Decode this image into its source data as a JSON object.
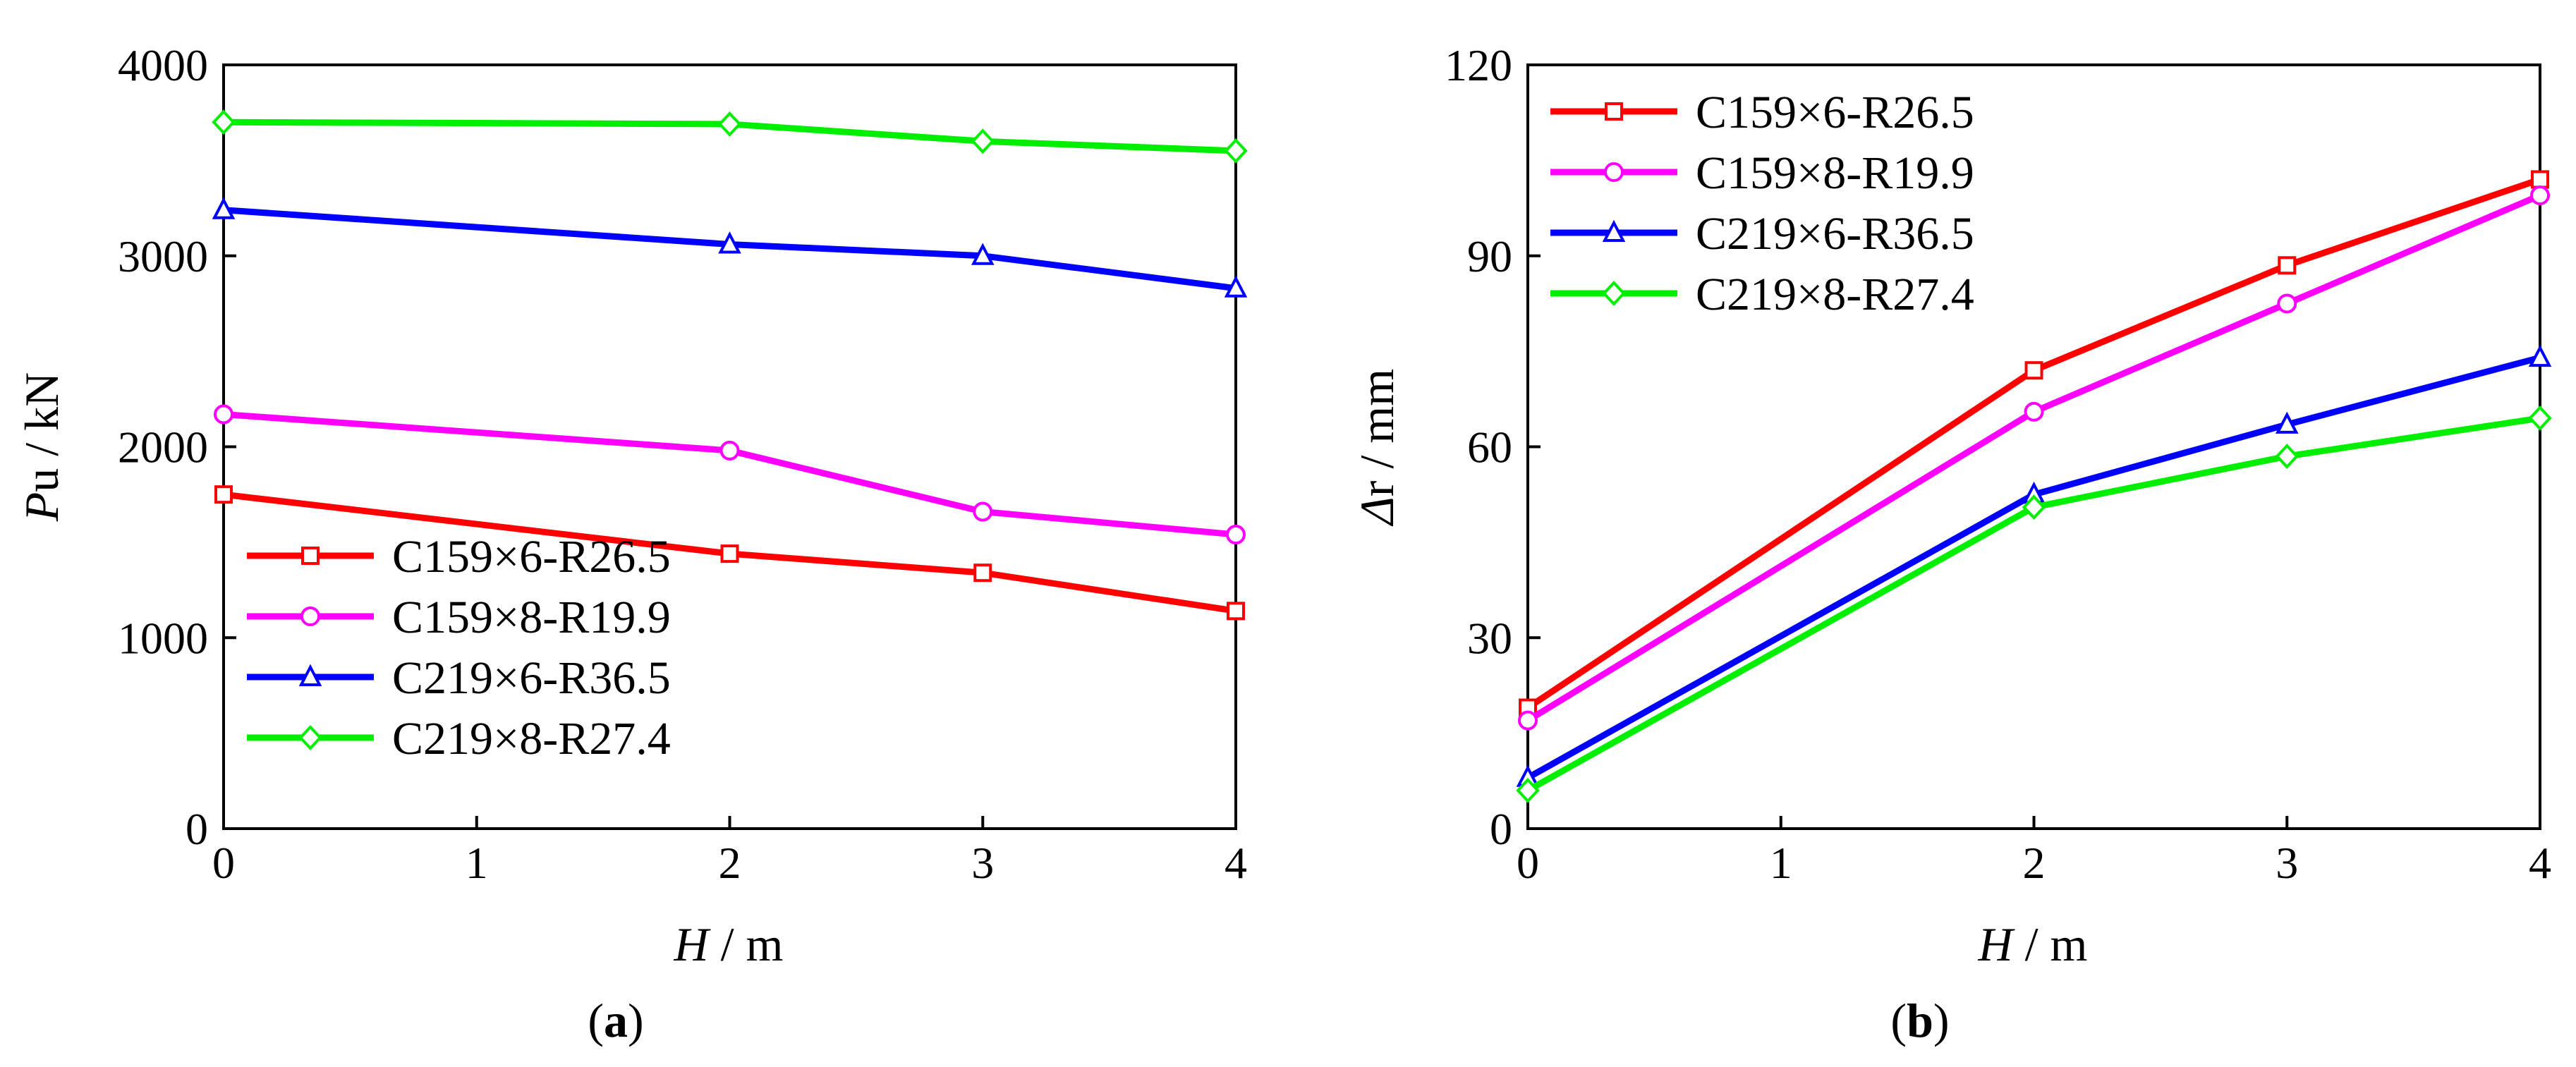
{
  "chart_data": [
    {
      "type": "line",
      "caption_open": "(",
      "caption_letter": "a",
      "caption_close": ")",
      "x": [
        0,
        2,
        3,
        4
      ],
      "xlim": [
        0,
        4
      ],
      "ylim": [
        0,
        4000
      ],
      "xticks": [
        "0",
        "1",
        "2",
        "3",
        "4"
      ],
      "yticks": [
        "0",
        "1000",
        "2000",
        "3000",
        "4000"
      ],
      "xlabel_var": "H",
      "xlabel_unit": " / m",
      "ylabel_var": "P",
      "ylabel_unit": "u / kN",
      "legend_position": "bottom-left",
      "series": [
        {
          "name": "C159×6-R26.5",
          "color": "#ff0000",
          "marker": "square",
          "values": [
            1750,
            1440,
            1340,
            1140
          ]
        },
        {
          "name": "C159×8-R19.9",
          "color": "#ff00ff",
          "marker": "circle",
          "values": [
            2170,
            1980,
            1660,
            1540
          ]
        },
        {
          "name": "C219×6-R36.5",
          "color": "#0000ff",
          "marker": "triangle",
          "values": [
            3240,
            3060,
            3000,
            2830
          ]
        },
        {
          "name": "C219×8-R27.4",
          "color": "#00ee00",
          "marker": "diamond",
          "values": [
            3700,
            3690,
            3600,
            3550
          ]
        }
      ]
    },
    {
      "type": "line",
      "caption_open": "(",
      "caption_letter": "b",
      "caption_close": ")",
      "x": [
        0,
        2,
        3,
        4
      ],
      "xlim": [
        0,
        4
      ],
      "ylim": [
        0,
        120
      ],
      "xticks": [
        "0",
        "1",
        "2",
        "3",
        "4"
      ],
      "yticks": [
        "0",
        "30",
        "60",
        "90",
        "120"
      ],
      "xlabel_var": "H",
      "xlabel_unit": " / m",
      "ylabel_var": "Δ",
      "ylabel_unit": "r / mm",
      "legend_position": "top-left",
      "series": [
        {
          "name": "C159×6-R26.5",
          "color": "#ff0000",
          "marker": "square",
          "values": [
            19,
            72,
            88.5,
            102
          ]
        },
        {
          "name": "C159×8-R19.9",
          "color": "#ff00ff",
          "marker": "circle",
          "values": [
            17,
            65.5,
            82.5,
            99.5
          ]
        },
        {
          "name": "C219×6-R36.5",
          "color": "#0000ff",
          "marker": "triangle",
          "values": [
            8,
            52.5,
            63.5,
            74
          ]
        },
        {
          "name": "C219×8-R27.4",
          "color": "#00ee00",
          "marker": "diamond",
          "values": [
            6,
            50.5,
            58.5,
            64.5
          ]
        }
      ]
    }
  ]
}
